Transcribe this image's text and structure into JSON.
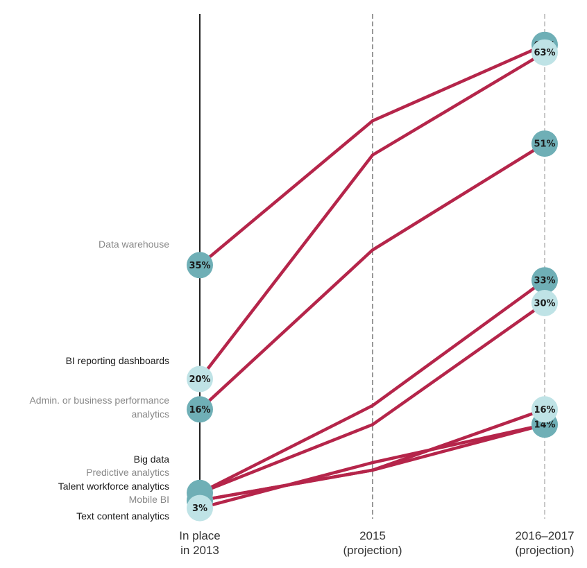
{
  "chart_data": {
    "type": "line",
    "x_categories": [
      "In place in 2013",
      "2015 (projection)",
      "2016–2017 (projection)"
    ],
    "x_label_lines": [
      [
        "In place",
        "in 2013"
      ],
      [
        "2015",
        "(projection)"
      ],
      [
        "2016–2017",
        "(projection)"
      ]
    ],
    "ylim": [
      0,
      70
    ],
    "colors": {
      "line": "#b5254a",
      "bubble_dark": "#6fafb6",
      "bubble_light": "#bfe3e6",
      "label_dark": "#1b1b1b",
      "label_gray": "#888888",
      "axis_solid": "#222222",
      "axis_dashed": "#999999"
    },
    "series": [
      {
        "name": "Data warehouse",
        "values": [
          35,
          54,
          64
        ],
        "label_tone": "gray",
        "start_label": "35%",
        "end_label": "64%",
        "start_bubble": "dark",
        "end_bubble": "dark"
      },
      {
        "name": "BI reporting dashboards",
        "values": [
          20,
          49.5,
          63
        ],
        "label_tone": "dark",
        "start_label": "20%",
        "end_label": "63%",
        "start_bubble": "light",
        "end_bubble": "light"
      },
      {
        "name": "Admin. or business performance analytics",
        "label_lines": [
          "Admin. or business performance",
          "analytics"
        ],
        "values": [
          16,
          37,
          51
        ],
        "label_tone": "gray",
        "start_label": "16%",
        "end_label": "51%",
        "start_bubble": "dark",
        "end_bubble": "dark"
      },
      {
        "name": "Big data",
        "values": [
          5,
          16.5,
          33
        ],
        "label_tone": "dark",
        "start_label": "",
        "end_label": "33%",
        "start_bubble": "none",
        "end_bubble": "dark"
      },
      {
        "name": "Predictive analytics",
        "values": [
          5,
          14,
          30
        ],
        "label_tone": "gray",
        "start_label": "5%",
        "end_label": "30%",
        "start_bubble": "dark",
        "end_bubble": "light"
      },
      {
        "name": "Talent workforce analytics",
        "values": [
          4,
          8,
          14
        ],
        "label_tone": "dark",
        "start_label": "4%",
        "end_label": "14%",
        "start_bubble": "dark",
        "end_bubble": "dark"
      },
      {
        "name": "Mobile BI",
        "values": [
          4,
          8,
          16
        ],
        "label_tone": "gray",
        "start_label": "",
        "end_label": "16%",
        "start_bubble": "light",
        "end_bubble": "light"
      },
      {
        "name": "Text content analytics",
        "values": [
          3,
          9,
          14
        ],
        "label_tone": "dark",
        "start_label": "3%",
        "end_label": "",
        "start_bubble": "light",
        "end_bubble": "light"
      }
    ]
  }
}
